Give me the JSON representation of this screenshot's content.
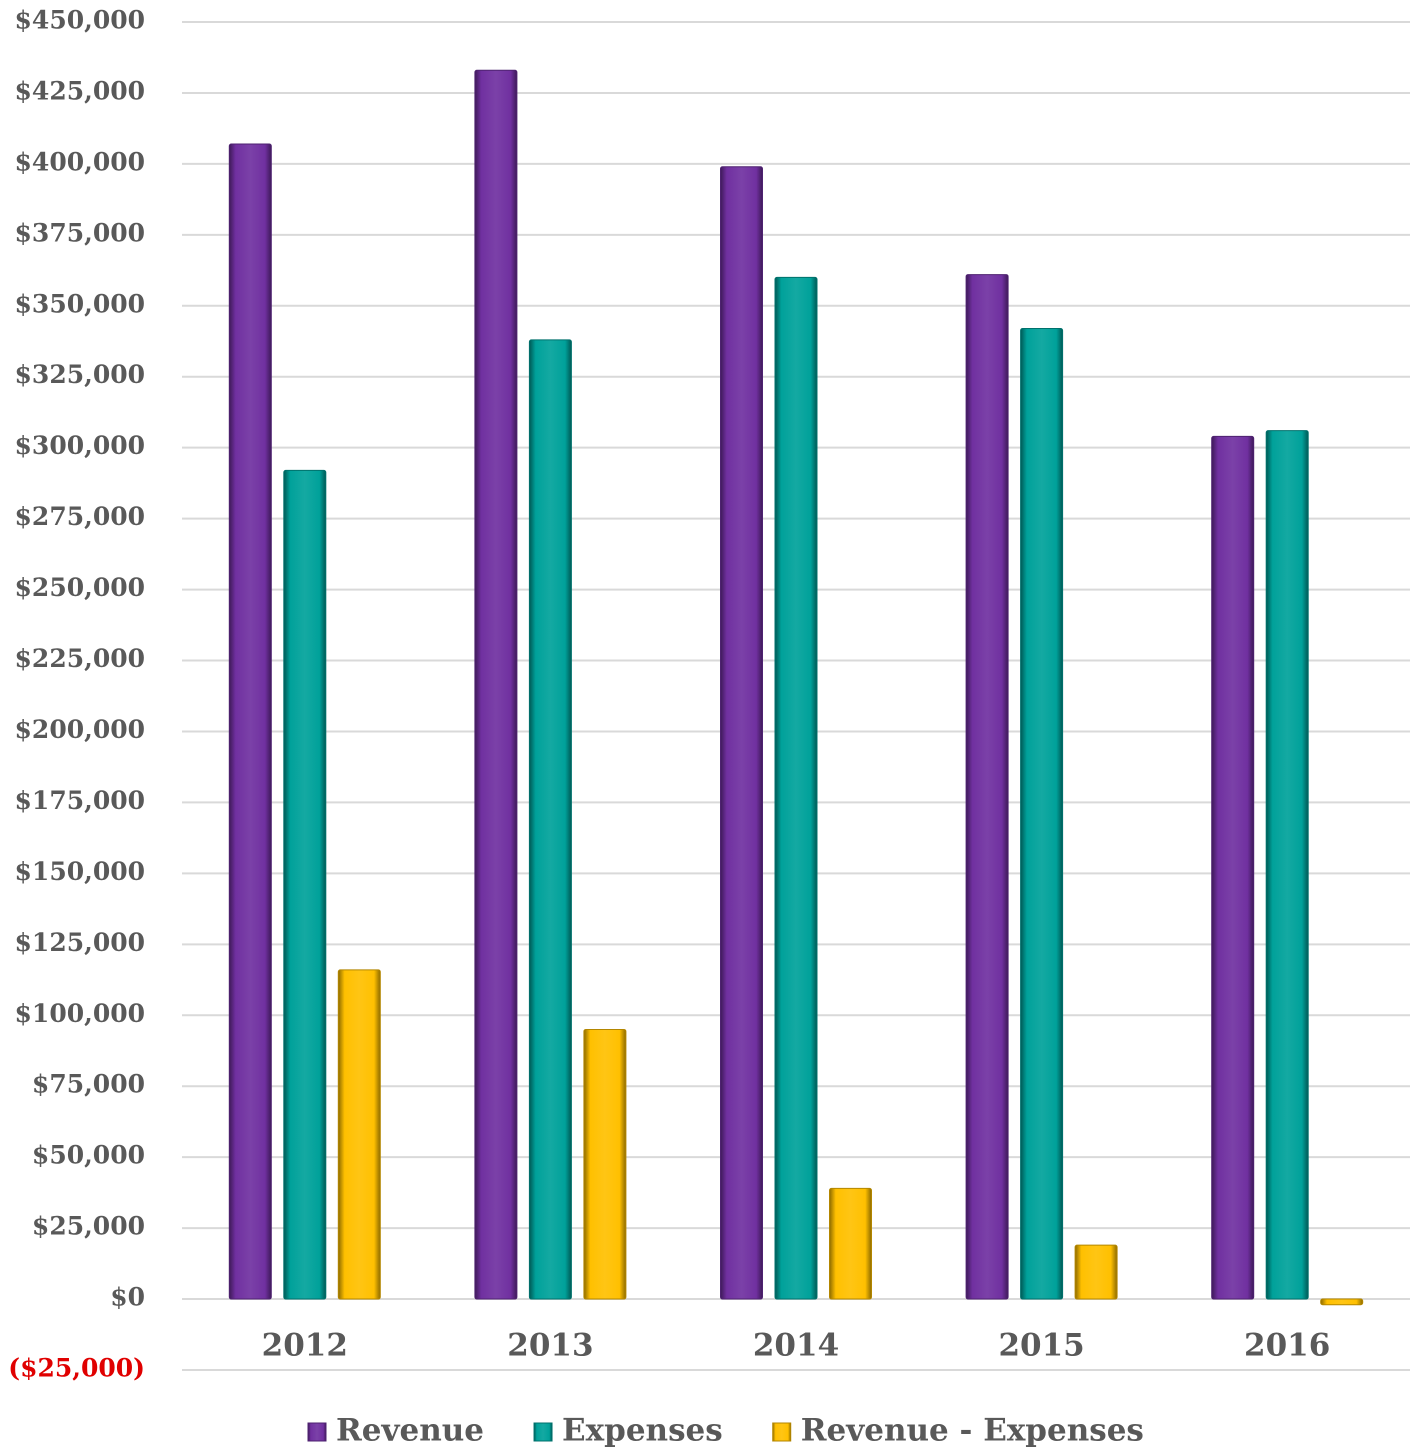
{
  "chart_data": {
    "type": "bar",
    "categories": [
      "2012",
      "2013",
      "2014",
      "2015",
      "2016"
    ],
    "series": [
      {
        "name": "Revenue",
        "color": "#7030a0",
        "values": [
          407000,
          433000,
          399000,
          361000,
          304000
        ]
      },
      {
        "name": "Expenses",
        "color": "#00a19a",
        "values": [
          292000,
          338000,
          360000,
          342000,
          306000
        ]
      },
      {
        "name": "Revenue - Expenses",
        "color": "#ffc000",
        "values": [
          116000,
          95000,
          39000,
          19000,
          -2000
        ]
      }
    ],
    "ylim": [
      -25000,
      450000
    ],
    "yticks": [
      {
        "value": -25000,
        "label": "($25,000)"
      },
      {
        "value": 0,
        "label": "$0"
      },
      {
        "value": 25000,
        "label": "$25,000"
      },
      {
        "value": 50000,
        "label": "$50,000"
      },
      {
        "value": 75000,
        "label": "$75,000"
      },
      {
        "value": 100000,
        "label": "$100,000"
      },
      {
        "value": 125000,
        "label": "$125,000"
      },
      {
        "value": 150000,
        "label": "$150,000"
      },
      {
        "value": 175000,
        "label": "$175,000"
      },
      {
        "value": 200000,
        "label": "$200,000"
      },
      {
        "value": 225000,
        "label": "$225,000"
      },
      {
        "value": 250000,
        "label": "$250,000"
      },
      {
        "value": 275000,
        "label": "$275,000"
      },
      {
        "value": 300000,
        "label": "$300,000"
      },
      {
        "value": 325000,
        "label": "$325,000"
      },
      {
        "value": 350000,
        "label": "$350,000"
      },
      {
        "value": 375000,
        "label": "$375,000"
      },
      {
        "value": 400000,
        "label": "$400,000"
      },
      {
        "value": 425000,
        "label": "$425,000"
      },
      {
        "value": 450000,
        "label": "$450,000"
      }
    ],
    "negative_tick_color": "#e00000",
    "grid": true,
    "legend": "bottom"
  }
}
